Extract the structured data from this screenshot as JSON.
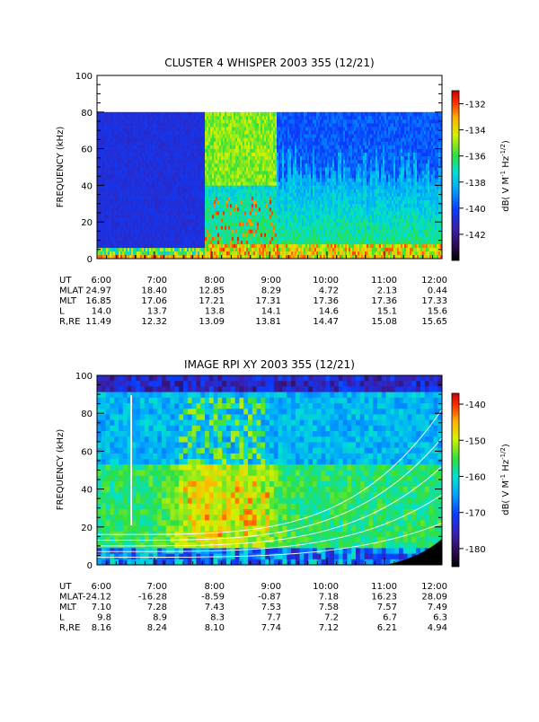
{
  "chart_data": [
    {
      "type": "heatmap",
      "title": "CLUSTER 4 WHISPER 2003 355 (12/21)",
      "ylabel": "FREQUENCY (kHz)",
      "ylim": [
        0,
        100
      ],
      "yticks": [
        "0",
        "20",
        "40",
        "60",
        "80",
        "100"
      ],
      "xlim": [
        "6:00",
        "12:00"
      ],
      "data_top_khz": 80,
      "colorbar": {
        "label": "dB( V M⁻¹ Hz⁻¹ᵍ²)",
        "label_parts": [
          "dB( V M",
          "-1",
          " Hz",
          "-1/2",
          ")"
        ],
        "range": [
          -144,
          -131
        ],
        "ticks": [
          "-132",
          "-134",
          "-136",
          "-138",
          "-140",
          "-142"
        ]
      },
      "orbit_table": {
        "rows": [
          {
            "label": "UT",
            "values": [
              "6:00",
              "7:00",
              "8:00",
              "9:00",
              "10:00",
              "11:00",
              "12:00"
            ]
          },
          {
            "label": "MLAT",
            "values": [
              "24.97",
              "18.40",
              "12.85",
              "8.29",
              "4.72",
              "2.13",
              "0.44"
            ]
          },
          {
            "label": "MLT",
            "values": [
              "16.85",
              "17.06",
              "17.21",
              "17.31",
              "17.36",
              "17.36",
              "17.33"
            ]
          },
          {
            "label": "L",
            "values": [
              "14.0",
              "13.7",
              "13.8",
              "14.1",
              "14.6",
              "15.1",
              "15.6"
            ]
          },
          {
            "label": "R,RE",
            "values": [
              "11.49",
              "12.32",
              "13.09",
              "13.81",
              "14.47",
              "15.08",
              "15.65"
            ]
          }
        ]
      }
    },
    {
      "type": "heatmap",
      "title": "IMAGE RPI XY 2003 355 (12/21)",
      "ylabel": "FREQUENCY (kHz)",
      "ylim": [
        0,
        100
      ],
      "yticks": [
        "0",
        "20",
        "40",
        "60",
        "80",
        "100"
      ],
      "xlim": [
        "6:00",
        "12:00"
      ],
      "colorbar": {
        "label_parts": [
          "dB( V M",
          "-1",
          " Hz",
          "-1/2",
          ")"
        ],
        "range": [
          -185,
          -137
        ],
        "ticks": [
          "-140",
          "-150",
          "-160",
          "-170",
          "-180"
        ]
      },
      "orbit_table": {
        "rows": [
          {
            "label": "UT",
            "values": [
              "6:00",
              "7:00",
              "8:00",
              "9:00",
              "10:00",
              "11:00",
              "12:00"
            ]
          },
          {
            "label": "MLAT",
            "values": [
              "-24.12",
              "-16.28",
              "-8.59",
              "-0.87",
              "7.18",
              "16.23",
              "28.09"
            ]
          },
          {
            "label": "MLT",
            "values": [
              "7.10",
              "7.28",
              "7.43",
              "7.53",
              "7.58",
              "7.57",
              "7.49"
            ]
          },
          {
            "label": "L",
            "values": [
              "9.8",
              "8.9",
              "8.3",
              "7.7",
              "7.2",
              "6.7",
              "6.3"
            ]
          },
          {
            "label": "R,RE",
            "values": [
              "8.16",
              "8.24",
              "8.10",
              "7.74",
              "7.12",
              "6.21",
              "4.94"
            ]
          }
        ]
      }
    }
  ]
}
